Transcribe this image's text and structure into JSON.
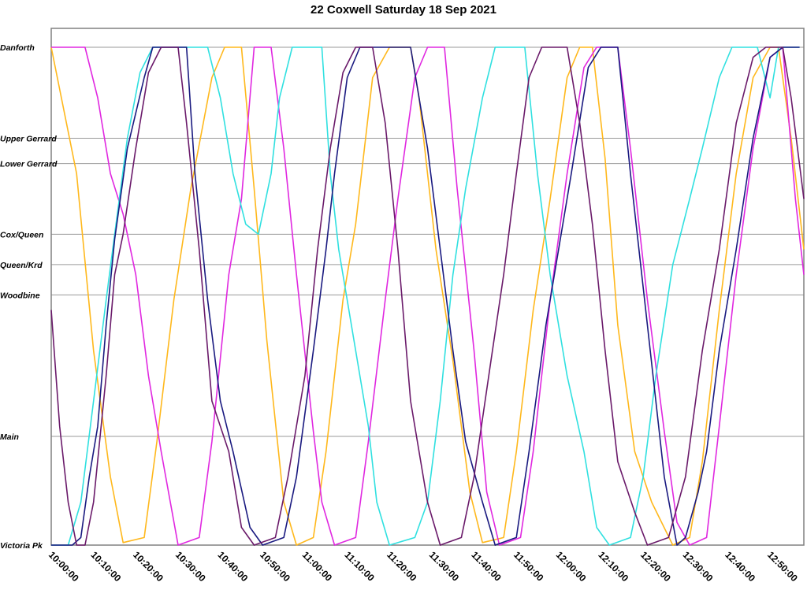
{
  "chart_data": {
    "type": "line",
    "title": "22 Coxwell Saturday 18 Sep 2021",
    "xlabel": "",
    "ylabel": "",
    "x_range": [
      "10:00:00",
      "12:58:00"
    ],
    "x_ticks": [
      "10:00:00",
      "10:10:00",
      "10:20:00",
      "10:30:00",
      "10:40:00",
      "10:50:00",
      "11:00:00",
      "11:10:00",
      "11:20:00",
      "11:30:00",
      "11:40:00",
      "11:50:00",
      "12:00:00",
      "12:10:00",
      "12:20:00",
      "12:30:00",
      "12:40:00",
      "12:50:00"
    ],
    "stops": [
      {
        "name": "Danforth",
        "pos": 0
      },
      {
        "name": "Upper Gerrard",
        "pos": 0.18
      },
      {
        "name": "Lower Gerrard",
        "pos": 0.23
      },
      {
        "name": "Cox/Queen",
        "pos": 0.37
      },
      {
        "name": "Queen/Krd",
        "pos": 0.43
      },
      {
        "name": "Woodbine",
        "pos": 0.49
      },
      {
        "name": "Main",
        "pos": 0.77
      },
      {
        "name": "Victoria Pk",
        "pos": 0.985
      }
    ],
    "grid": true,
    "legend": "none",
    "series": [
      {
        "color": "#ffb81c",
        "points": [
          [
            "10:00",
            0.0
          ],
          [
            "10:06",
            0.25
          ],
          [
            "10:10",
            0.6
          ],
          [
            "10:14",
            0.85
          ],
          [
            "10:17",
            0.98
          ],
          [
            "10:22",
            0.97
          ],
          [
            "10:25",
            0.78
          ],
          [
            "10:29",
            0.5
          ],
          [
            "10:33",
            0.28
          ],
          [
            "10:38",
            0.06
          ],
          [
            "10:41",
            0.0
          ],
          [
            "10:45",
            0.0
          ],
          [
            "10:48",
            0.28
          ],
          [
            "10:51",
            0.58
          ],
          [
            "10:55",
            0.9
          ],
          [
            "10:58",
            0.985
          ],
          [
            "11:02",
            0.97
          ],
          [
            "11:05",
            0.8
          ],
          [
            "11:09",
            0.5
          ],
          [
            "11:12",
            0.35
          ],
          [
            "11:16",
            0.06
          ],
          [
            "11:20",
            0.0
          ],
          [
            "11:25",
            0.0
          ],
          [
            "11:27",
            0.1
          ],
          [
            "11:31",
            0.4
          ],
          [
            "11:35",
            0.62
          ],
          [
            "11:39",
            0.88
          ],
          [
            "11:42",
            0.98
          ],
          [
            "11:47",
            0.97
          ],
          [
            "11:50",
            0.8
          ],
          [
            "11:54",
            0.52
          ],
          [
            "11:58",
            0.3
          ],
          [
            "12:02",
            0.06
          ],
          [
            "12:05",
            0.0
          ],
          [
            "12:08",
            0.0
          ],
          [
            "12:11",
            0.22
          ],
          [
            "12:14",
            0.55
          ],
          [
            "12:18",
            0.8
          ],
          [
            "12:22",
            0.9
          ],
          [
            "12:27",
            0.985
          ],
          [
            "12:31",
            0.97
          ],
          [
            "12:34",
            0.82
          ],
          [
            "12:38",
            0.52
          ],
          [
            "12:42",
            0.25
          ],
          [
            "12:46",
            0.06
          ],
          [
            "12:50",
            0.0
          ],
          [
            "12:52",
            0.0
          ],
          [
            "12:55",
            0.18
          ],
          [
            "12:58",
            0.4
          ]
        ]
      },
      {
        "color": "#e028e0",
        "points": [
          [
            "10:00",
            0.0
          ],
          [
            "10:08",
            0.0
          ],
          [
            "10:11",
            0.1
          ],
          [
            "10:14",
            0.25
          ],
          [
            "10:17",
            0.33
          ],
          [
            "10:20",
            0.45
          ],
          [
            "10:23",
            0.65
          ],
          [
            "10:26",
            0.8
          ],
          [
            "10:30",
            0.985
          ],
          [
            "10:35",
            0.97
          ],
          [
            "10:38",
            0.78
          ],
          [
            "10:42",
            0.45
          ],
          [
            "10:45",
            0.3
          ],
          [
            "10:48",
            0.0
          ],
          [
            "10:52",
            0.0
          ],
          [
            "10:55",
            0.2
          ],
          [
            "10:58",
            0.45
          ],
          [
            "11:02",
            0.76
          ],
          [
            "11:04",
            0.9
          ],
          [
            "11:07",
            0.985
          ],
          [
            "11:12",
            0.97
          ],
          [
            "11:15",
            0.78
          ],
          [
            "11:19",
            0.5
          ],
          [
            "11:22",
            0.3
          ],
          [
            "11:26",
            0.06
          ],
          [
            "11:29",
            0.0
          ],
          [
            "11:33",
            0.0
          ],
          [
            "11:36",
            0.28
          ],
          [
            "11:40",
            0.6
          ],
          [
            "11:43",
            0.88
          ],
          [
            "11:46",
            0.985
          ],
          [
            "11:51",
            0.97
          ],
          [
            "11:54",
            0.8
          ],
          [
            "11:58",
            0.5
          ],
          [
            "12:02",
            0.25
          ],
          [
            "12:06",
            0.04
          ],
          [
            "12:09",
            0.0
          ],
          [
            "12:14",
            0.0
          ],
          [
            "12:17",
            0.2
          ],
          [
            "12:21",
            0.5
          ],
          [
            "12:25",
            0.76
          ],
          [
            "12:28",
            0.94
          ],
          [
            "12:31",
            0.985
          ],
          [
            "12:35",
            0.97
          ],
          [
            "12:38",
            0.75
          ],
          [
            "12:42",
            0.45
          ],
          [
            "12:46",
            0.2
          ],
          [
            "12:50",
            0.02
          ],
          [
            "12:53",
            0.0
          ],
          [
            "12:56",
            0.3
          ],
          [
            "12:58",
            0.45
          ]
        ]
      },
      {
        "color": "#30e0e0",
        "points": [
          [
            "10:00",
            0.985
          ],
          [
            "10:04",
            0.985
          ],
          [
            "10:07",
            0.9
          ],
          [
            "10:10",
            0.7
          ],
          [
            "10:13",
            0.5
          ],
          [
            "10:15",
            0.37
          ],
          [
            "10:18",
            0.18
          ],
          [
            "10:21",
            0.05
          ],
          [
            "10:24",
            0.0
          ],
          [
            "10:37",
            0.0
          ],
          [
            "10:40",
            0.1
          ],
          [
            "10:43",
            0.25
          ],
          [
            "10:46",
            0.35
          ],
          [
            "10:49",
            0.37
          ],
          [
            "10:52",
            0.25
          ],
          [
            "10:54",
            0.1
          ],
          [
            "10:57",
            0.0
          ],
          [
            "11:04",
            0.0
          ],
          [
            "11:06",
            0.25
          ],
          [
            "11:08",
            0.4
          ],
          [
            "11:12",
            0.6
          ],
          [
            "11:15",
            0.75
          ],
          [
            "11:17",
            0.9
          ],
          [
            "11:20",
            0.985
          ],
          [
            "11:26",
            0.97
          ],
          [
            "11:29",
            0.9
          ],
          [
            "11:32",
            0.7
          ],
          [
            "11:35",
            0.45
          ],
          [
            "11:38",
            0.28
          ],
          [
            "11:42",
            0.1
          ],
          [
            "11:45",
            0.0
          ],
          [
            "11:52",
            0.0
          ],
          [
            "11:55",
            0.25
          ],
          [
            "11:58",
            0.45
          ],
          [
            "12:02",
            0.65
          ],
          [
            "12:06",
            0.8
          ],
          [
            "12:09",
            0.95
          ],
          [
            "12:12",
            0.985
          ],
          [
            "12:17",
            0.97
          ],
          [
            "12:20",
            0.85
          ],
          [
            "12:23",
            0.65
          ],
          [
            "12:27",
            0.43
          ],
          [
            "12:31",
            0.3
          ],
          [
            "12:34",
            0.2
          ],
          [
            "12:38",
            0.06
          ],
          [
            "12:41",
            0.0
          ],
          [
            "12:47",
            0.0
          ],
          [
            "12:50",
            0.1
          ],
          [
            "12:52",
            0.0
          ],
          [
            "12:55",
            0.0
          ],
          [
            "12:57",
            0.0
          ]
        ]
      },
      {
        "color": "#1a1a80",
        "points": [
          [
            "10:00",
            0.985
          ],
          [
            "10:05",
            0.985
          ],
          [
            "10:07",
            0.97
          ],
          [
            "10:09",
            0.85
          ],
          [
            "10:11",
            0.75
          ],
          [
            "10:13",
            0.55
          ],
          [
            "10:15",
            0.38
          ],
          [
            "10:18",
            0.2
          ],
          [
            "10:22",
            0.06
          ],
          [
            "10:24",
            0.0
          ],
          [
            "10:32",
            0.0
          ],
          [
            "10:34",
            0.25
          ],
          [
            "10:37",
            0.5
          ],
          [
            "10:40",
            0.7
          ],
          [
            "10:43",
            0.8
          ],
          [
            "10:47",
            0.95
          ],
          [
            "10:50",
            0.985
          ],
          [
            "10:55",
            0.97
          ],
          [
            "10:58",
            0.85
          ],
          [
            "11:02",
            0.6
          ],
          [
            "11:05",
            0.4
          ],
          [
            "11:07",
            0.25
          ],
          [
            "11:10",
            0.06
          ],
          [
            "11:13",
            0.0
          ],
          [
            "11:25",
            0.0
          ],
          [
            "11:29",
            0.2
          ],
          [
            "11:32",
            0.4
          ],
          [
            "11:35",
            0.6
          ],
          [
            "11:38",
            0.78
          ],
          [
            "11:42",
            0.9
          ],
          [
            "11:45",
            0.985
          ],
          [
            "11:50",
            0.97
          ],
          [
            "11:53",
            0.8
          ],
          [
            "11:57",
            0.55
          ],
          [
            "12:00",
            0.4
          ],
          [
            "12:03",
            0.25
          ],
          [
            "12:07",
            0.04
          ],
          [
            "12:10",
            0.0
          ],
          [
            "12:14",
            0.0
          ],
          [
            "12:17",
            0.25
          ],
          [
            "12:21",
            0.55
          ],
          [
            "12:25",
            0.85
          ],
          [
            "12:28",
            0.985
          ],
          [
            "12:30",
            0.97
          ],
          [
            "12:33",
            0.88
          ],
          [
            "12:35",
            0.8
          ],
          [
            "12:38",
            0.6
          ],
          [
            "12:42",
            0.4
          ],
          [
            "12:46",
            0.18
          ],
          [
            "12:50",
            0.02
          ],
          [
            "12:53",
            0.0
          ],
          [
            "12:57",
            0.0
          ]
        ]
      },
      {
        "color": "#6a1a6a",
        "points": [
          [
            "10:00",
            0.52
          ],
          [
            "10:02",
            0.75
          ],
          [
            "10:04",
            0.9
          ],
          [
            "10:06",
            0.985
          ],
          [
            "10:08",
            0.985
          ],
          [
            "10:10",
            0.9
          ],
          [
            "10:13",
            0.65
          ],
          [
            "10:15",
            0.45
          ],
          [
            "10:17",
            0.37
          ],
          [
            "10:20",
            0.2
          ],
          [
            "10:23",
            0.05
          ],
          [
            "10:26",
            0.0
          ],
          [
            "10:30",
            0.0
          ],
          [
            "10:32",
            0.15
          ],
          [
            "10:35",
            0.4
          ],
          [
            "10:38",
            0.7
          ],
          [
            "10:42",
            0.8
          ],
          [
            "10:45",
            0.95
          ],
          [
            "10:48",
            0.985
          ],
          [
            "10:53",
            0.97
          ],
          [
            "10:56",
            0.85
          ],
          [
            "11:00",
            0.65
          ],
          [
            "11:03",
            0.4
          ],
          [
            "11:06",
            0.2
          ],
          [
            "11:09",
            0.05
          ],
          [
            "11:12",
            0.0
          ],
          [
            "11:16",
            0.0
          ],
          [
            "11:19",
            0.15
          ],
          [
            "11:22",
            0.4
          ],
          [
            "11:25",
            0.7
          ],
          [
            "11:29",
            0.9
          ],
          [
            "11:32",
            0.985
          ],
          [
            "11:37",
            0.97
          ],
          [
            "11:40",
            0.85
          ],
          [
            "11:44",
            0.62
          ],
          [
            "11:47",
            0.45
          ],
          [
            "11:50",
            0.25
          ],
          [
            "11:53",
            0.06
          ],
          [
            "11:56",
            0.0
          ],
          [
            "12:02",
            0.0
          ],
          [
            "12:05",
            0.15
          ],
          [
            "12:08",
            0.35
          ],
          [
            "12:11",
            0.6
          ],
          [
            "12:14",
            0.82
          ],
          [
            "12:18",
            0.92
          ],
          [
            "12:21",
            0.985
          ],
          [
            "12:26",
            0.97
          ],
          [
            "12:30",
            0.85
          ],
          [
            "12:34",
            0.6
          ],
          [
            "12:38",
            0.4
          ],
          [
            "12:42",
            0.15
          ],
          [
            "12:46",
            0.02
          ],
          [
            "12:49",
            0.0
          ],
          [
            "12:53",
            0.0
          ],
          [
            "12:55",
            0.1
          ],
          [
            "12:58",
            0.3
          ]
        ]
      }
    ]
  }
}
